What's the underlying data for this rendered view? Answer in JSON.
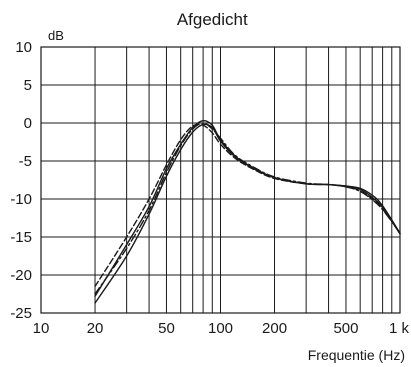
{
  "chart_data": {
    "type": "line",
    "title": "Afgedicht",
    "ylabel": "dB",
    "xlabel": "Frequentie (Hz)",
    "x_scale": "log",
    "xlim": [
      10,
      1000
    ],
    "ylim": [
      -25,
      10
    ],
    "grid": true,
    "y_ticks": [
      10,
      5,
      0,
      -5,
      -10,
      -15,
      -20,
      -25
    ],
    "y_tick_labels": [
      "10",
      "5",
      "0",
      "-5",
      "-10",
      "-15",
      "-20",
      "-25"
    ],
    "x_ticks": [
      10,
      20,
      50,
      100,
      200,
      500,
      1000
    ],
    "x_tick_labels": [
      "10",
      "20",
      "50",
      "100",
      "200",
      "500",
      "1 k"
    ],
    "series": [
      {
        "style": "dashed",
        "x": [
          20,
          30,
          40,
          50,
          60,
          70,
          80,
          90,
          100,
          120,
          150,
          200,
          300,
          400,
          500,
          600,
          700,
          800,
          1000
        ],
        "y": [
          -21.5,
          -15.0,
          -10.0,
          -5.5,
          -2.2,
          -0.4,
          -0.3,
          -1.3,
          -2.8,
          -4.6,
          -6.0,
          -7.3,
          -8.0,
          -8.1,
          -8.4,
          -8.9,
          -10.0,
          -11.3,
          -14.5
        ]
      },
      {
        "style": "dash-dot",
        "x": [
          20,
          30,
          40,
          50,
          60,
          70,
          80,
          90,
          100,
          120,
          150,
          200,
          300,
          400,
          500,
          600,
          700,
          800,
          1000
        ],
        "y": [
          -22.5,
          -16.5,
          -11.5,
          -6.5,
          -3.0,
          -0.8,
          0.0,
          -0.8,
          -2.0,
          -4.2,
          -5.7,
          -7.1,
          -7.9,
          -8.1,
          -8.4,
          -9.0,
          -10.1,
          -11.4,
          -14.5
        ]
      },
      {
        "style": "solid",
        "x": [
          20,
          30,
          40,
          50,
          60,
          70,
          80,
          90,
          100,
          120,
          150,
          200,
          300,
          400,
          500,
          600,
          700,
          800,
          1000
        ],
        "y": [
          -23.7,
          -17.5,
          -12.0,
          -7.0,
          -3.5,
          -1.2,
          -0.2,
          -0.6,
          -2.4,
          -4.4,
          -5.8,
          -7.2,
          -8.0,
          -8.1,
          -8.3,
          -8.6,
          -9.5,
          -10.9,
          -14.5
        ]
      },
      {
        "style": "solid",
        "x": [
          20,
          30,
          40,
          50,
          60,
          70,
          80,
          90,
          100,
          120,
          150,
          200,
          300,
          400,
          500,
          600,
          700,
          800,
          1000
        ],
        "y": [
          -22.8,
          -16.0,
          -11.0,
          -6.0,
          -2.8,
          -0.6,
          0.3,
          -0.3,
          -2.2,
          -4.3,
          -5.9,
          -7.2,
          -8.0,
          -8.1,
          -8.3,
          -8.7,
          -9.8,
          -11.1,
          -14.6
        ]
      }
    ]
  }
}
